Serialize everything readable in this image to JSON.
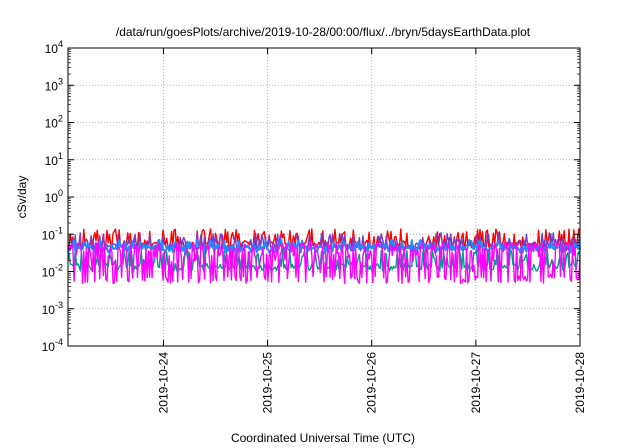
{
  "chart_data": {
    "type": "line",
    "title": "/data/run/goesPlots/archive/2019-10-28/00:00/flux/../bryn/5daysEarthData.plot",
    "xlabel": "Coordinated Universal Time (UTC)",
    "ylabel": "cSv/day",
    "yscale": "log",
    "ylim": [
      0.0001,
      10000
    ],
    "y_ticks": [
      {
        "base": "10",
        "exp": "-4",
        "value": 0.0001
      },
      {
        "base": "10",
        "exp": "-3",
        "value": 0.001
      },
      {
        "base": "10",
        "exp": "-2",
        "value": 0.01
      },
      {
        "base": "10",
        "exp": "-1",
        "value": 0.1
      },
      {
        "base": "10",
        "exp": "0",
        "value": 1
      },
      {
        "base": "10",
        "exp": "1",
        "value": 10
      },
      {
        "base": "10",
        "exp": "2",
        "value": 100
      },
      {
        "base": "10",
        "exp": "3",
        "value": 1000
      },
      {
        "base": "10",
        "exp": "4",
        "value": 10000
      }
    ],
    "xlim": [
      "2019-10-23T02:00",
      "2019-10-28T00:00"
    ],
    "x_ticks": [
      "2019-10-24",
      "2019-10-25",
      "2019-10-26",
      "2019-10-27",
      "2019-10-28"
    ],
    "grid": true,
    "series": [
      {
        "color": "#ff0000",
        "baseline": 0.05,
        "spike_max": 0.14
      },
      {
        "color": "#7a3cc8",
        "baseline": 0.045,
        "spike_max": 0.11
      },
      {
        "color": "#009c8c",
        "baseline": 0.013,
        "spike_max": 0.04
      },
      {
        "color": "#1e8cff",
        "baseline": 0.04,
        "spike_max": 0.07
      },
      {
        "color": "#ff00ff",
        "baseline": 0.006,
        "spike_max": 0.06
      }
    ]
  }
}
